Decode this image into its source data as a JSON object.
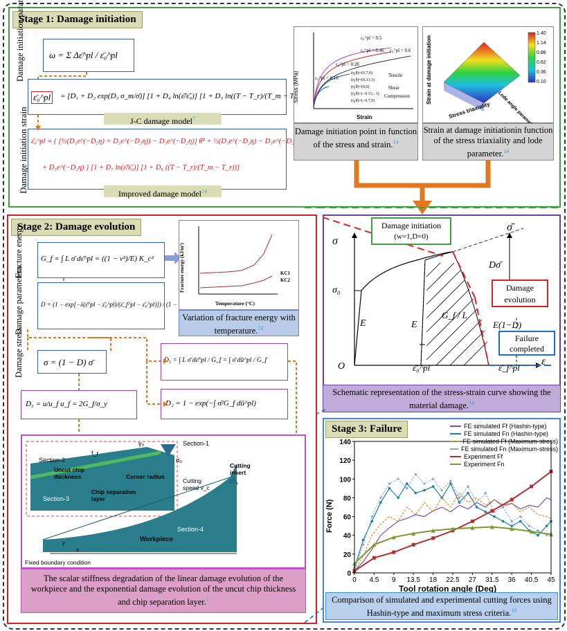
{
  "stage1": {
    "title": "Stage 1: Damage initiation",
    "label_initiation_params": "Damage initiation parameters",
    "label_initiation_strain": "Damage initiation strain",
    "omega_eq": "ω = Σ Δε̄^pl / ε̄₀^pl",
    "jc_eq_lhs": "ε̄₀^pl",
    "jc_eq_rhs": "= [D₁ + D₂ exp(D₃ σ_m/σ̄)] [1 + D₄ ln(ε̄̇/ε̄̇₀)] [1 + D₅ ln((T − T_r)/(T_m − T_r))]",
    "jc_label": "J-C damage model",
    "jc_ref": "7",
    "improved_eq_line1": "ε̄₀^pl = { [½(D₁e^(−D₂η) + D₃e^(−D₂η)) − D₃e^(−D₂η)] θ̄² + ½(D₁e^(−D₂η) − D₃e^(−D₂η)) θ̄",
    "improved_eq_line2": "+ D₃e^(−D₂η) } [1 + D₇ ln(ε̄̇/ε̄̇₀)] [1 + D₈ ((T − T_r)/(T_m − T_r))]",
    "improved_label": "Improved damage model",
    "improved_ref": "14",
    "fig1_caption": "Damage initiation point in function of the stress and strain.",
    "fig1_ref": "14",
    "fig2_caption": "Strain at damage initiationin function of the stress triaxiality and lode parameter.",
    "fig2_ref": "14",
    "fig1": {
      "ylabel": "Stress (MPa)",
      "xlabel": "Strain",
      "yticks": [
        "0",
        "200",
        "400",
        "600",
        "800",
        "1000",
        "1200",
        "1400",
        "1600"
      ],
      "xticks": [
        "0.0",
        "0.1",
        "0.2",
        "0.3",
        "0.4",
        "0.5",
        "0.6"
      ],
      "annotations": [
        "ε₀^pl = 0.5",
        "ε₀^pl = 0.46",
        "ε₀^pl = 0.6",
        "ε₀^pl = 0.28",
        "ε₀^pl = 0.16"
      ],
      "legend": [
        "(η,θ)=(0.7,0)",
        "(η,θ)=(0.33,1)",
        "(η,θ)=(0,0)",
        "(η,θ)=(−0.33,−1)",
        "(η,θ)=(−0.7,0)"
      ],
      "legend_tags": [
        "Tensile",
        "Shear",
        "Compression"
      ]
    },
    "fig2": {
      "zlabel": "Strain at damage initiation",
      "xlabel": "Stress triaxiality",
      "ylabel": "Lode angle parameter",
      "colorbar": [
        "1.40",
        "1.14",
        "0.88",
        "0.62",
        "0.36",
        "0.10"
      ]
    }
  },
  "stage2": {
    "title": "Stage 2: Damage evolution",
    "label_fracture_energy": "Fracture energy",
    "label_damage_params": "Damage parameters",
    "label_damage_stress": "Damage stress",
    "gf_eq": "G_f = ∫ L σ̄ dε̄^pl = ((1 − ν²)/E) K_c²",
    "d_eq": "D = (1 − exp[−λ(ε̄^pl − ε̄₀^pl)/(ε̄_f^pl − ε̄₀^pl)]) / (1 − exp(λ))",
    "sigma_eq": "σ = (1 − D) σ̄",
    "d1_eq": "D₁ = ∫ L σ̄ dε̄^pl / G_f = ∫ σ̄ dū^pl / G_f",
    "d2_eq": "D₂ = 1 − exp(−∫ σ̄/G_f dū^pl)",
    "d3_eq": "D₃ = u/u_f      u_f = 2G_f/σ_y",
    "fe_fig": {
      "ylabel": "Fracture energy (kJ/m²)",
      "xlabel": "Temperature (°C)",
      "yticks": [
        "0",
        "20",
        "40",
        "60",
        "80",
        "100",
        "120"
      ],
      "xticks": [
        "0",
        "300",
        "600",
        "900",
        "1200",
        "1500"
      ],
      "legend": [
        "KC1",
        "KC2"
      ]
    },
    "fe_caption": "Variation of fracture energy with temperature.",
    "fe_ref": "16",
    "mesh_labels": {
      "section1": "Section-1",
      "section2": "Section-2",
      "section3": "Section-3",
      "section4": "Section-4",
      "gamma": "γ₀",
      "alpha": "α₀",
      "feed": "f_r",
      "uncut": "Uncut chip thickness",
      "corner": "Corner radius",
      "chip_sep": "Chip separation layer",
      "cutting_speed": "Cutting speed v_c",
      "insert": "Cutting insert",
      "workpiece": "Workpiece",
      "fixed": "Fixed boundary condition",
      "axis_y": "y",
      "axis_x": "x"
    },
    "mesh_caption": "The scalar stiffness degradation of the linear damage evolution of the workpiece and the exponential damage evolution of the uncut chip thickness and chip separation layer.",
    "mesh_ref": "1"
  },
  "schematic": {
    "damage_initiation": "Damage initiation",
    "damage_initiation_sub": "(w=1,D=0)",
    "sigma_bar": "σ̄",
    "sigma": "σ",
    "sigma0": "σ₀",
    "d_sigma": "Dσ̄",
    "e1": "E",
    "e2": "E",
    "gf_l": "G_f / L",
    "e_1d": "E(1−D)",
    "damage_evolution": "Damage evolution",
    "failure_completed": "Failure completed",
    "origin": "O",
    "eps0": "ε̄₀^pl",
    "epsf": "ε̄_f^pl",
    "eps": "ε",
    "caption": "Schematic representation of the stress-strain curve showing the material damage.",
    "ref": "14"
  },
  "stage3": {
    "title": "Stage 3: Failure",
    "caption": "Comparison of simulated and experimental cutting forces using Hashin-type and maximum stress criteria.",
    "ref": "10"
  },
  "chart_data": {
    "type": "line",
    "xlabel": "Tool rotation angle (Deg)",
    "ylabel": "Force (N)",
    "xticks": [
      "0",
      "4.5",
      "9",
      "13.5",
      "18",
      "22.5",
      "27",
      "31.5",
      "36",
      "40.5",
      "45"
    ],
    "yticks": [
      "0",
      "20",
      "40",
      "60",
      "80",
      "100",
      "120",
      "140"
    ],
    "xlim": [
      0,
      45
    ],
    "ylim": [
      0,
      140
    ],
    "legend_placement": "top-right",
    "series": [
      {
        "name": "FE simulated Ff (Hashin-type)",
        "color": "#7a4fa8",
        "x": [
          0,
          2,
          4,
          6,
          8,
          10,
          12,
          14,
          16,
          18,
          20,
          22,
          24,
          26,
          28,
          30,
          32,
          34,
          36,
          38,
          40,
          42,
          44,
          45
        ],
        "y": [
          2,
          12,
          25,
          40,
          48,
          55,
          58,
          62,
          60,
          66,
          70,
          65,
          72,
          68,
          75,
          70,
          78,
          72,
          74,
          68,
          72,
          70,
          80,
          78
        ]
      },
      {
        "name": "FE simulated Fn (Hashin-type)",
        "color": "#1f7fa0",
        "x": [
          0,
          2,
          4,
          6,
          8,
          10,
          12,
          14,
          16,
          18,
          20,
          22,
          24,
          26,
          28,
          30,
          32,
          34,
          36,
          38,
          40,
          42,
          44,
          45
        ],
        "y": [
          5,
          35,
          55,
          75,
          90,
          80,
          95,
          85,
          88,
          92,
          80,
          95,
          75,
          85,
          70,
          65,
          60,
          55,
          50,
          55,
          45,
          40,
          50,
          55
        ]
      },
      {
        "name": "FE simulated Ff (Maximum-stress)",
        "color": "#e08a20",
        "x": [
          0,
          2,
          4,
          6,
          8,
          10,
          12,
          14,
          16,
          18,
          20,
          22,
          24,
          26,
          28,
          30,
          32,
          34,
          36,
          38,
          40,
          42,
          44,
          45
        ],
        "y": [
          3,
          18,
          40,
          52,
          60,
          55,
          70,
          62,
          75,
          65,
          80,
          70,
          85,
          75,
          80,
          72,
          78,
          70,
          74,
          65,
          70,
          62,
          60,
          58
        ]
      },
      {
        "name": "FE simulated Fn (Maximum-stress)",
        "color": "#8aa0d8",
        "x": [
          0,
          2,
          4,
          6,
          8,
          10,
          12,
          14,
          16,
          18,
          20,
          22,
          24,
          26,
          28,
          30,
          32,
          34,
          36,
          38,
          40,
          42,
          44,
          45
        ],
        "y": [
          4,
          30,
          60,
          80,
          95,
          100,
          90,
          105,
          95,
          100,
          88,
          98,
          80,
          92,
          75,
          85,
          65,
          70,
          55,
          60,
          50,
          45,
          40,
          42
        ]
      },
      {
        "name": "Experiment Ff",
        "color": "#b03030",
        "x": [
          0,
          4.5,
          9,
          13.5,
          18,
          22.5,
          27,
          31.5,
          36,
          40.5,
          45
        ],
        "y": [
          2,
          16,
          22,
          30,
          37,
          45,
          55,
          66,
          78,
          92,
          108
        ]
      },
      {
        "name": "Experiment Fn",
        "color": "#7a9a30",
        "x": [
          0,
          4.5,
          9,
          13.5,
          18,
          22.5,
          27,
          31.5,
          36,
          40.5,
          45
        ],
        "y": [
          10,
          30,
          38,
          42,
          45,
          47,
          48,
          49,
          47,
          44,
          41
        ]
      }
    ]
  }
}
